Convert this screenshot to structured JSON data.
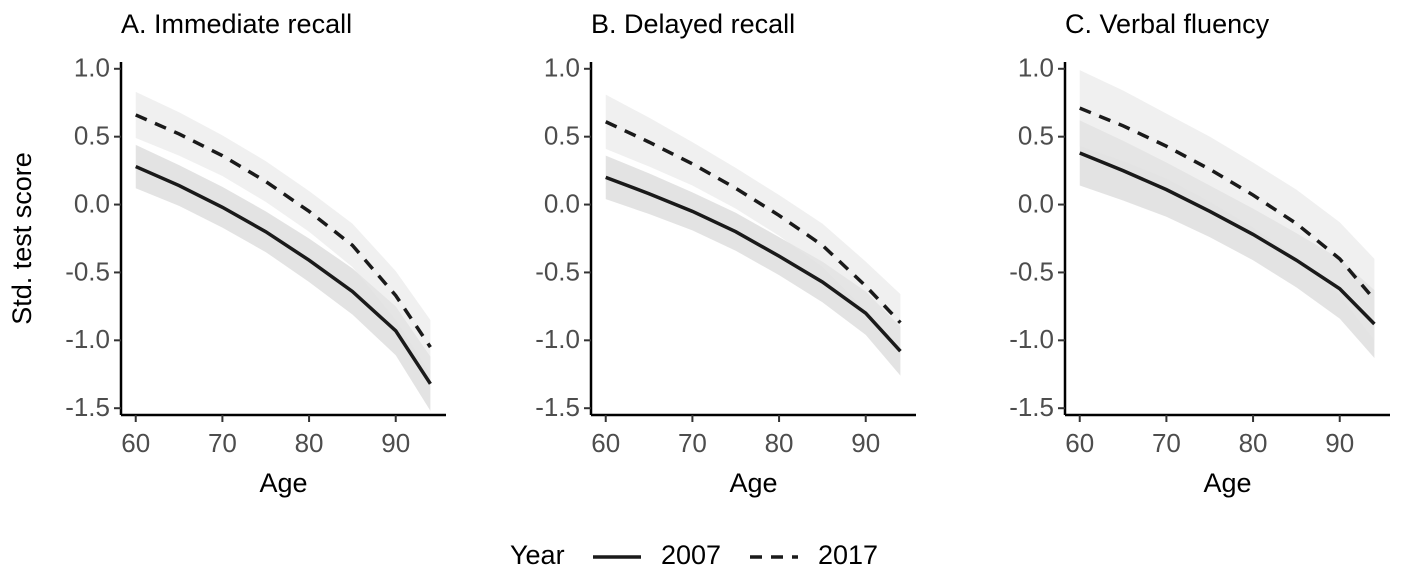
{
  "chart_data": [
    {
      "type": "line",
      "title": "A. Immediate recall",
      "xlabel": "Age",
      "ylabel": "Std. test score",
      "x": [
        60,
        65,
        70,
        75,
        80,
        85,
        90,
        94
      ],
      "xlim": [
        58.3,
        95.8
      ],
      "xticks": [
        60,
        70,
        80,
        90
      ],
      "ylim": [
        -1.55,
        1.05
      ],
      "yticks": [
        -1.5,
        {
          "value": -1,
          "label": "-1.0"
        },
        -0.5,
        {
          "value": 0,
          "label": "0.0"
        },
        0.5,
        {
          "value": 1,
          "label": "1.0"
        }
      ],
      "series": [
        {
          "name": "2007",
          "color": "#1a1a1a",
          "dash": "solid",
          "band_color": "#d0d0d0",
          "values": [
            0.28,
            0.14,
            -0.02,
            -0.2,
            -0.41,
            -0.64,
            -0.93,
            -1.32
          ],
          "lower": [
            0.12,
            -0.01,
            -0.17,
            -0.35,
            -0.57,
            -0.81,
            -1.11,
            -1.52
          ],
          "upper": [
            0.44,
            0.29,
            0.13,
            -0.05,
            -0.25,
            -0.47,
            -0.75,
            -1.12
          ]
        },
        {
          "name": "2017",
          "color": "#1a1a1a",
          "dash": "dashed",
          "band_color": "#e6e6e6",
          "values": [
            0.66,
            0.52,
            0.36,
            0.17,
            -0.05,
            -0.3,
            -0.67,
            -1.05
          ],
          "lower": [
            0.49,
            0.36,
            0.21,
            0.02,
            -0.2,
            -0.46,
            -0.85,
            -1.25
          ],
          "upper": [
            0.83,
            0.68,
            0.51,
            0.32,
            0.1,
            -0.14,
            -0.49,
            -0.85
          ]
        }
      ]
    },
    {
      "type": "line",
      "title": "B. Delayed recall",
      "xlabel": "Age",
      "x": [
        60,
        65,
        70,
        75,
        80,
        85,
        90,
        94
      ],
      "xlim": [
        58.3,
        95.8
      ],
      "xticks": [
        60,
        70,
        80,
        90
      ],
      "ylim": [
        -1.55,
        1.05
      ],
      "yticks": [
        -1.5,
        {
          "value": -1,
          "label": "-1.0"
        },
        -0.5,
        {
          "value": 0,
          "label": "0.0"
        },
        0.5,
        {
          "value": 1,
          "label": "1.0"
        }
      ],
      "series": [
        {
          "name": "2007",
          "color": "#1a1a1a",
          "dash": "solid",
          "band_color": "#d0d0d0",
          "values": [
            0.2,
            0.08,
            -0.05,
            -0.2,
            -0.38,
            -0.57,
            -0.8,
            -1.08
          ],
          "lower": [
            0.04,
            -0.07,
            -0.19,
            -0.34,
            -0.52,
            -0.72,
            -0.96,
            -1.26
          ],
          "upper": [
            0.36,
            0.23,
            0.09,
            -0.06,
            -0.24,
            -0.42,
            -0.64,
            -0.9
          ]
        },
        {
          "name": "2017",
          "color": "#1a1a1a",
          "dash": "dashed",
          "band_color": "#e6e6e6",
          "values": [
            0.61,
            0.46,
            0.3,
            0.12,
            -0.08,
            -0.3,
            -0.6,
            -0.87
          ],
          "lower": [
            0.41,
            0.28,
            0.14,
            -0.03,
            -0.23,
            -0.46,
            -0.78,
            -1.08
          ],
          "upper": [
            0.81,
            0.64,
            0.46,
            0.27,
            0.07,
            -0.14,
            -0.42,
            -0.66
          ]
        }
      ]
    },
    {
      "type": "line",
      "title": "C. Verbal fluency",
      "xlabel": "Age",
      "x": [
        60,
        65,
        70,
        75,
        80,
        85,
        90,
        94
      ],
      "xlim": [
        58.3,
        95.8
      ],
      "xticks": [
        60,
        70,
        80,
        90
      ],
      "ylim": [
        -1.55,
        1.05
      ],
      "yticks": [
        -1.5,
        {
          "value": -1,
          "label": "-1.0"
        },
        -0.5,
        {
          "value": 0,
          "label": "0.0"
        },
        0.5,
        {
          "value": 1,
          "label": "1.0"
        }
      ],
      "series": [
        {
          "name": "2007",
          "color": "#1a1a1a",
          "dash": "solid",
          "band_color": "#d0d0d0",
          "values": [
            0.38,
            0.25,
            0.11,
            -0.05,
            -0.22,
            -0.41,
            -0.62,
            -0.88
          ],
          "lower": [
            0.14,
            0.03,
            -0.09,
            -0.24,
            -0.41,
            -0.61,
            -0.84,
            -1.13
          ],
          "upper": [
            0.62,
            0.47,
            0.31,
            0.14,
            -0.03,
            -0.21,
            -0.4,
            -0.63
          ]
        },
        {
          "name": "2017",
          "color": "#1a1a1a",
          "dash": "dashed",
          "band_color": "#e6e6e6",
          "values": [
            0.71,
            0.58,
            0.43,
            0.26,
            0.07,
            -0.14,
            -0.4,
            -0.7
          ],
          "lower": [
            0.43,
            0.32,
            0.19,
            0.02,
            -0.17,
            -0.39,
            -0.67,
            -1.0
          ],
          "upper": [
            0.99,
            0.84,
            0.67,
            0.5,
            0.31,
            0.11,
            -0.13,
            -0.4
          ]
        }
      ]
    }
  ],
  "legend": {
    "title": "Year",
    "position": "bottom"
  }
}
